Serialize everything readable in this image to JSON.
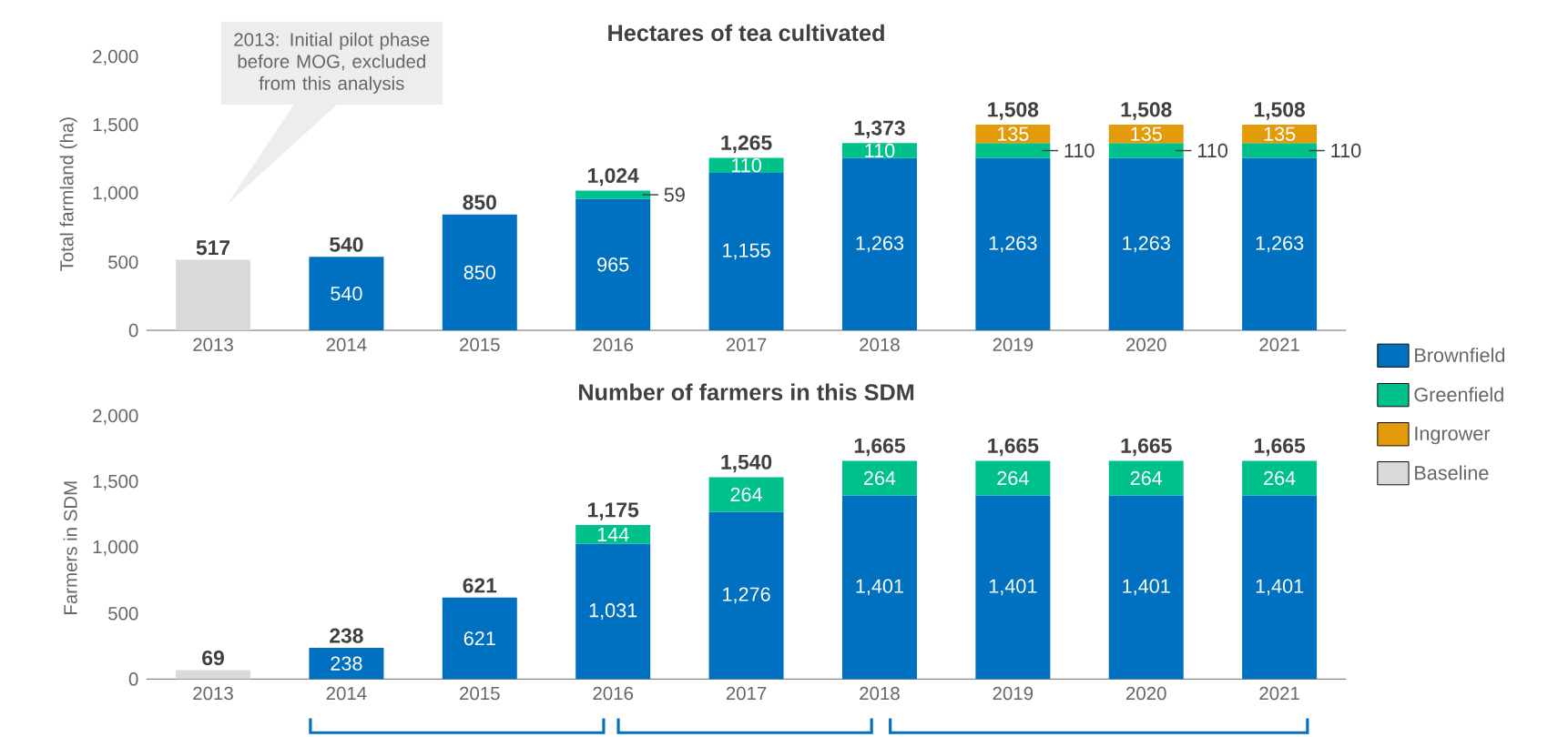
{
  "chart_data": [
    {
      "type": "bar",
      "title": "Hectares of tea cultivated",
      "ylabel": "Total farmland (ha)",
      "stacked": true,
      "legend": "right",
      "categories": [
        "2013",
        "2014",
        "2015",
        "2016",
        "2017",
        "2018",
        "2019",
        "2020",
        "2021"
      ],
      "series": [
        {
          "name": "Brownfield",
          "color": "#0070c0",
          "values": [
            null,
            540,
            850,
            965,
            1155,
            1263,
            1263,
            1263,
            1263
          ],
          "value_labels": [
            null,
            "540",
            "850",
            "965",
            "1,155",
            "1,263",
            "1,263",
            "1,263",
            "1,263"
          ]
        },
        {
          "name": "Greenfield",
          "color": "#00c08b",
          "values": [
            null,
            null,
            null,
            59,
            110,
            110,
            110,
            110,
            110
          ],
          "value_labels": [
            null,
            null,
            null,
            "59",
            "110",
            "110",
            "110",
            "110",
            "110"
          ]
        },
        {
          "name": "Ingrower",
          "color": "#e39b0b",
          "values": [
            null,
            null,
            null,
            null,
            null,
            null,
            135,
            135,
            135
          ],
          "value_labels": [
            null,
            null,
            null,
            null,
            null,
            null,
            "135",
            "135",
            "135"
          ]
        },
        {
          "name": "Baseline",
          "color": "#d9d9d9",
          "values": [
            517,
            null,
            null,
            null,
            null,
            null,
            null,
            null,
            null
          ]
        }
      ],
      "totals": [
        "517",
        "540",
        "850",
        "1,024",
        "1,265",
        "1,373",
        "1,508",
        "1,508",
        "1,508"
      ],
      "ylim": [
        0,
        2000
      ],
      "yticks": [
        0,
        500,
        {
          "value": 1000,
          "label": "1,000"
        },
        {
          "value": 1500,
          "label": "1,500"
        },
        {
          "value": 2000,
          "label": "2,000"
        }
      ],
      "annotations": [
        "2013: Initial pilot phase before MOG, excluded from this analysis"
      ]
    },
    {
      "type": "bar",
      "title": "Number of farmers in this SDM",
      "ylabel": "Farmers in SDM",
      "stacked": true,
      "categories": [
        "2013",
        "2014",
        "2015",
        "2016",
        "2017",
        "2018",
        "2019",
        "2020",
        "2021"
      ],
      "series": [
        {
          "color": "#0070c0",
          "values": [
            null,
            238,
            621,
            1031,
            1276,
            1401,
            1401,
            1401,
            1401
          ],
          "value_labels": [
            null,
            "238",
            "621",
            "1,031",
            "1,276",
            "1,401",
            "1,401",
            "1,401",
            "1,401"
          ]
        },
        {
          "color": "#00c08b",
          "values": [
            null,
            null,
            null,
            144,
            264,
            264,
            264,
            264,
            264
          ],
          "value_labels": [
            null,
            null,
            null,
            "144",
            "264",
            "264",
            "264",
            "264",
            "264"
          ]
        },
        {
          "color": "#d9d9d9",
          "values": [
            69,
            null,
            null,
            null,
            null,
            null,
            null,
            null,
            null
          ]
        }
      ],
      "totals": [
        "69",
        "238",
        "621",
        "1,175",
        "1,540",
        "1,665",
        "1,665",
        "1,665",
        "1,665"
      ],
      "ylim": [
        0,
        2000
      ],
      "yticks": [
        0,
        500,
        {
          "value": 1000,
          "label": "1,000"
        },
        {
          "value": 1500,
          "label": "1,500"
        },
        {
          "value": 2000,
          "label": "2,000"
        }
      ]
    }
  ]
}
